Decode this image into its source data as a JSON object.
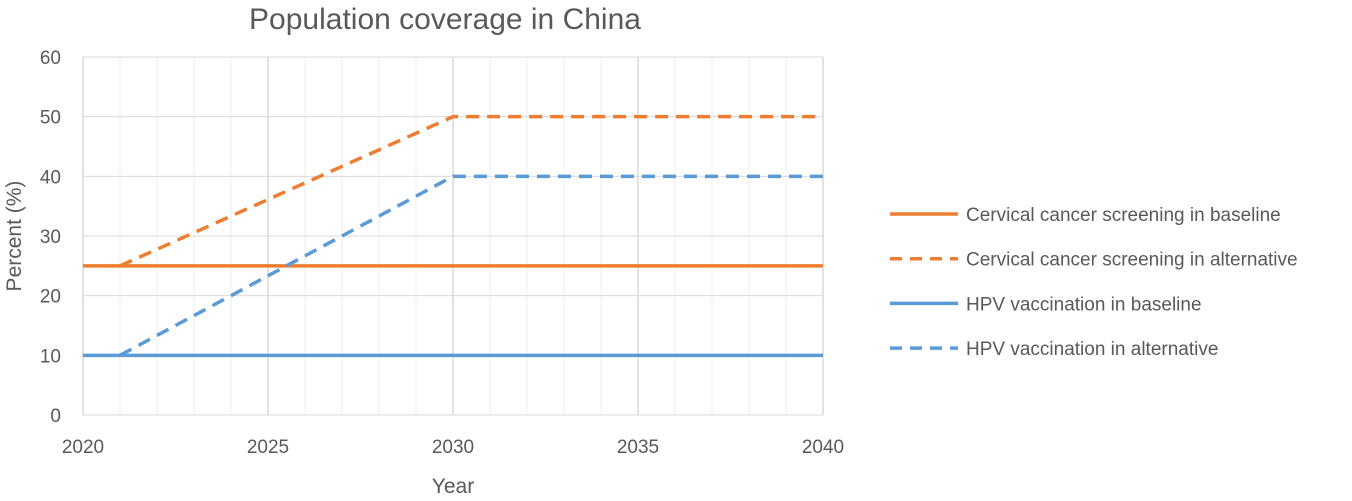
{
  "chart_data": {
    "type": "line",
    "title": "Population coverage in China",
    "xlabel": "Year",
    "ylabel": "Percent (%)",
    "xlim": [
      2020,
      2040
    ],
    "ylim": [
      0,
      60
    ],
    "x_ticks": [
      2020,
      2025,
      2030,
      2035,
      2040
    ],
    "y_ticks": [
      0,
      10,
      20,
      30,
      40,
      50,
      60
    ],
    "grid": true,
    "legend_position": "right",
    "series": [
      {
        "name": "Cervical cancer screening in baseline",
        "color": "#ED7D31",
        "style": "solid",
        "x": [
          2020,
          2040
        ],
        "y": [
          25,
          25
        ]
      },
      {
        "name": "Cervical cancer screening in alternative",
        "color": "#ED7D31",
        "style": "dashed",
        "x": [
          2021,
          2030,
          2040
        ],
        "y": [
          25,
          50,
          50
        ]
      },
      {
        "name": "HPV vaccination in baseline",
        "color": "#5B9BD5",
        "style": "solid",
        "x": [
          2020,
          2040
        ],
        "y": [
          10,
          10
        ]
      },
      {
        "name": "HPV vaccination in alternative",
        "color": "#5B9BD5",
        "style": "dashed",
        "x": [
          2021,
          2030,
          2040
        ],
        "y": [
          10,
          40,
          40
        ]
      }
    ]
  }
}
